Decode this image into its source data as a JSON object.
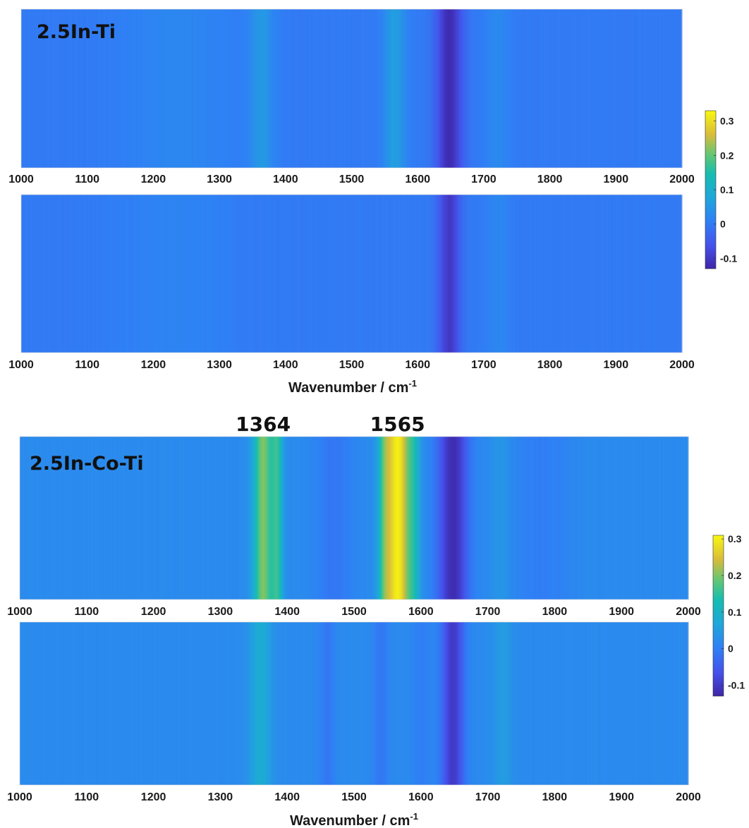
{
  "chart_data": [
    {
      "type": "heatmap",
      "sample_label": "2.5In-Ti",
      "xlim": [
        1000,
        2000
      ],
      "xticks": [
        1000,
        1100,
        1200,
        1300,
        1400,
        1500,
        1600,
        1700,
        1800,
        1900,
        2000
      ],
      "xlabel": {
        "main": "Wavenumber  /  cm",
        "sup": "-1"
      },
      "colorbar": {
        "range": [
          -0.13,
          0.33
        ],
        "ticks": [
          0.3,
          0.2,
          0.1,
          0,
          -0.1
        ],
        "tick_labels": [
          "0.3",
          "0.2",
          "0.1",
          "0",
          "-0.1"
        ],
        "colormap": "parula"
      },
      "baseline": 0.0,
      "panels": [
        {
          "name": "",
          "peaks": [
            {
              "center": 1240,
              "width": 60,
              "amplitude": 0.02
            },
            {
              "center": 1364,
              "width": 12,
              "amplitude": 0.05
            },
            {
              "center": 1565,
              "width": 12,
              "amplitude": 0.06
            },
            {
              "center": 1648,
              "width": 14,
              "amplitude": -0.12
            },
            {
              "center": 1720,
              "width": 12,
              "amplitude": 0.025
            }
          ]
        },
        {
          "name": "",
          "peaks": [
            {
              "center": 1230,
              "width": 60,
              "amplitude": 0.015
            },
            {
              "center": 1648,
              "width": 12,
              "amplitude": -0.1
            },
            {
              "center": 1722,
              "width": 12,
              "amplitude": 0.02
            }
          ]
        }
      ],
      "annotations": []
    },
    {
      "type": "heatmap",
      "sample_label": "2.5In-Co-Ti",
      "xlim": [
        1000,
        2000
      ],
      "xticks": [
        1000,
        1100,
        1200,
        1300,
        1400,
        1500,
        1600,
        1700,
        1800,
        1900,
        2000
      ],
      "xlabel": {
        "main": "Wavenumber  /  cm",
        "sup": "-1"
      },
      "colorbar": {
        "range": [
          -0.13,
          0.31
        ],
        "ticks": [
          0.3,
          0.2,
          0.1,
          0,
          -0.1
        ],
        "tick_labels": [
          "0.3",
          "0.2",
          "0.1",
          "0",
          "-0.1"
        ],
        "colormap": "parula"
      },
      "baseline": 0.02,
      "panels": [
        {
          "name": "",
          "peaks": [
            {
              "center": 1364,
              "width": 10,
              "amplitude": 0.18
            },
            {
              "center": 1385,
              "width": 6,
              "amplitude": 0.12
            },
            {
              "center": 1565,
              "width": 14,
              "amplitude": 0.28
            },
            {
              "center": 1545,
              "width": 6,
              "amplitude": 0.08
            },
            {
              "center": 1590,
              "width": 6,
              "amplitude": 0.06
            },
            {
              "center": 1470,
              "width": 20,
              "amplitude": -0.03
            },
            {
              "center": 1648,
              "width": 16,
              "amplitude": -0.14
            },
            {
              "center": 1720,
              "width": 10,
              "amplitude": 0.02
            },
            {
              "center": 1780,
              "width": 30,
              "amplitude": -0.02
            }
          ]
        },
        {
          "name": "",
          "peaks": [
            {
              "center": 1360,
              "width": 12,
              "amplitude": 0.06
            },
            {
              "center": 1460,
              "width": 8,
              "amplitude": -0.03
            },
            {
              "center": 1540,
              "width": 8,
              "amplitude": -0.03
            },
            {
              "center": 1600,
              "width": 10,
              "amplitude": -0.02
            },
            {
              "center": 1648,
              "width": 12,
              "amplitude": -0.12
            },
            {
              "center": 1722,
              "width": 10,
              "amplitude": 0.03
            }
          ]
        }
      ],
      "annotations": [
        {
          "text": "1364",
          "x": 1364
        },
        {
          "text": "1565",
          "x": 1565
        }
      ]
    }
  ]
}
